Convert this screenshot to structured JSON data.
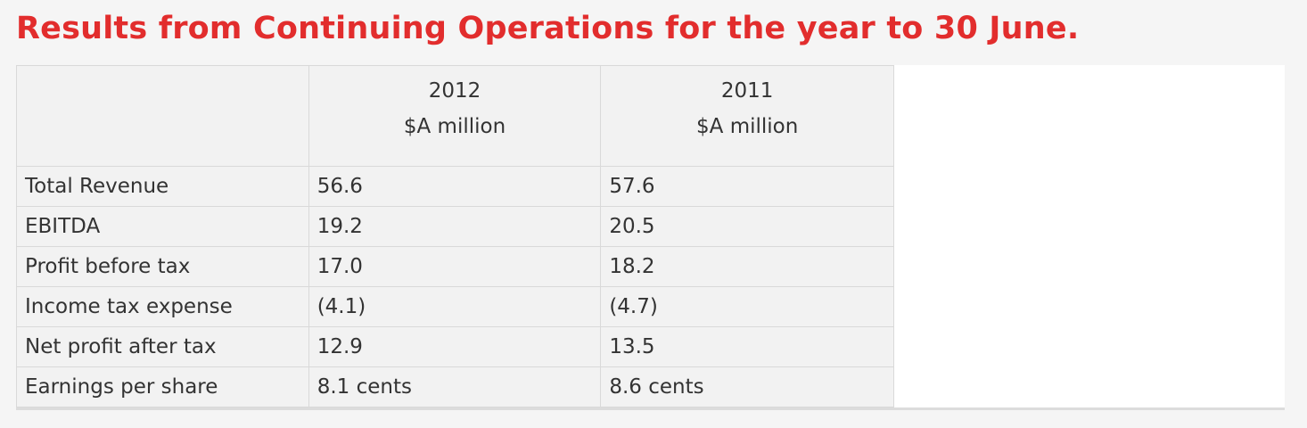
{
  "title": "Results from Continuing Operations for the year to 30 June.",
  "colors": {
    "title": "#e22d2d",
    "table_background": "#f2f2f2",
    "border": "#d9d9d9",
    "text": "#333333"
  },
  "table": {
    "columns": [
      {
        "year": "2012",
        "unit": "$A million"
      },
      {
        "year": "2011",
        "unit": "$A million"
      }
    ],
    "rows": [
      {
        "label": "Total Revenue",
        "values": [
          "56.6",
          "57.6"
        ]
      },
      {
        "label": "EBITDA",
        "values": [
          "19.2",
          "20.5"
        ]
      },
      {
        "label": "Profit before tax",
        "values": [
          "17.0",
          "18.2"
        ]
      },
      {
        "label": "Income tax expense",
        "values": [
          "(4.1)",
          "(4.7)"
        ]
      },
      {
        "label": "Net profit after tax",
        "values": [
          "12.9",
          "13.5"
        ]
      },
      {
        "label": "Earnings per share",
        "values": [
          "8.1 cents",
          "8.6 cents"
        ]
      }
    ]
  }
}
